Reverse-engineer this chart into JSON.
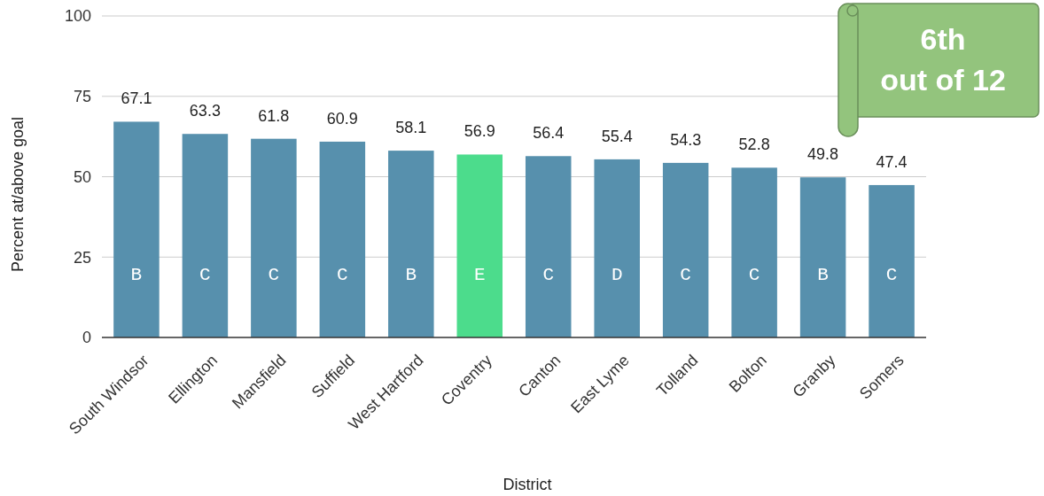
{
  "chart_data": {
    "type": "bar",
    "xlabel": "District",
    "ylabel": "Percent at/above goal",
    "categories": [
      "South Windsor",
      "Ellington",
      "Mansfield",
      "Suffield",
      "West Hartford",
      "Coventry",
      "Canton",
      "East Lyme",
      "Tolland",
      "Bolton",
      "Granby",
      "Somers"
    ],
    "values": [
      67.1,
      63.3,
      61.8,
      60.9,
      58.1,
      56.9,
      56.4,
      55.4,
      54.3,
      52.8,
      49.8,
      47.4
    ],
    "colors": [
      "#5790ad",
      "#5790ad",
      "#5790ad",
      "#5790ad",
      "#5790ad",
      "#4cdc8c",
      "#5790ad",
      "#5790ad",
      "#5790ad",
      "#5790ad",
      "#5790ad",
      "#5790ad"
    ],
    "data_labels": true,
    "ylim": [
      0,
      100
    ],
    "yticks": [
      0,
      25,
      50,
      75,
      100
    ],
    "grid": "y",
    "annotations": [
      "B",
      "C",
      "C",
      "C",
      "B",
      "E",
      "C",
      "D",
      "C",
      "C",
      "B",
      "C",
      "6th out of 12"
    ]
  }
}
